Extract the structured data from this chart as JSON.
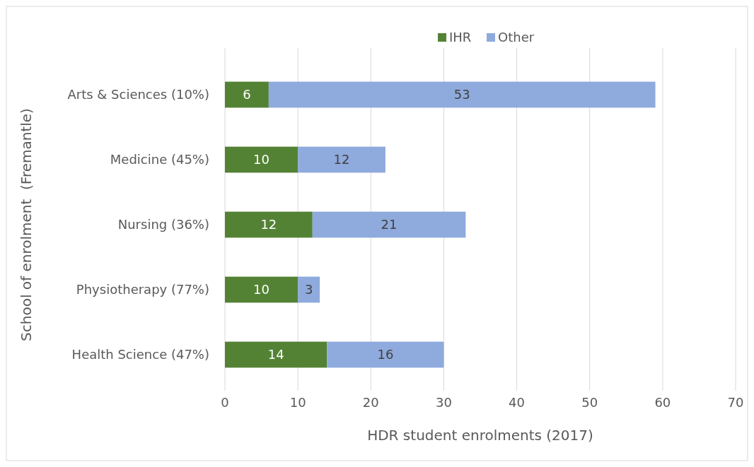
{
  "chart_data": {
    "type": "bar",
    "orientation": "horizontal",
    "stacked": true,
    "categories": [
      "Arts & Sciences (10%)",
      "Medicine (45%)",
      "Nursing (36%)",
      "Physiotherapy (77%)",
      "Health Science (47%)"
    ],
    "series": [
      {
        "name": "IHR",
        "color": "#548235",
        "values": [
          6,
          10,
          12,
          10,
          14
        ]
      },
      {
        "name": "Other",
        "color": "#8faadc",
        "values": [
          53,
          12,
          21,
          3,
          16
        ]
      }
    ],
    "xlim": [
      0,
      70
    ],
    "xticks": [
      0,
      10,
      20,
      30,
      40,
      50,
      60,
      70
    ],
    "xlabel": "HDR student enrolments (2017)",
    "ylabel": "School of enrolment  (Fremantle)",
    "grid": "x",
    "legend": "top",
    "data_labels": true
  }
}
